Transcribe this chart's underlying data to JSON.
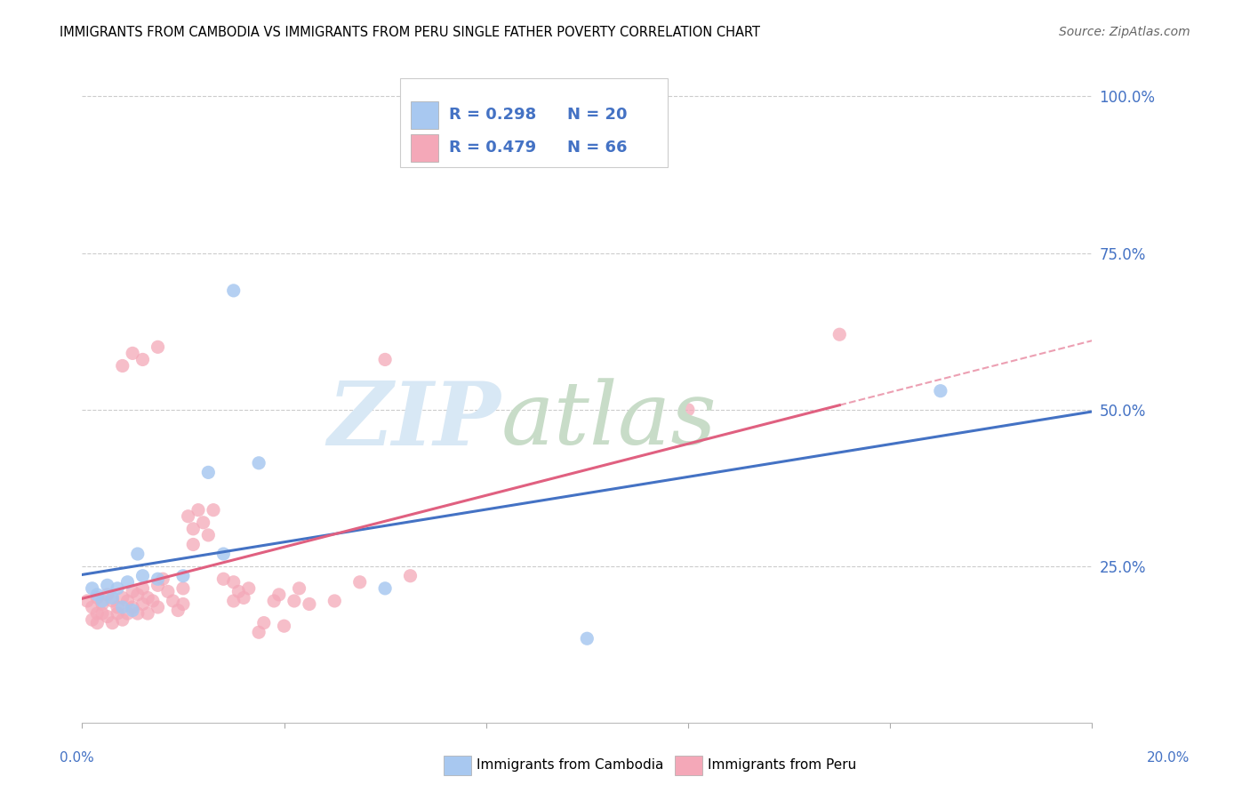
{
  "title": "IMMIGRANTS FROM CAMBODIA VS IMMIGRANTS FROM PERU SINGLE FATHER POVERTY CORRELATION CHART",
  "source": "Source: ZipAtlas.com",
  "ylabel": "Single Father Poverty",
  "xlim": [
    0.0,
    0.2
  ],
  "ylim": [
    0.0,
    1.05
  ],
  "legend_R1": "R = 0.298",
  "legend_N1": "N = 20",
  "legend_R2": "R = 0.479",
  "legend_N2": "N = 66",
  "color_R": "#4472c4",
  "color_N": "#ed7d31",
  "color_cambodia": "#a8c8f0",
  "color_peru": "#f4a8b8",
  "line_color_cambodia": "#4472c4",
  "line_color_peru": "#e06080",
  "background_color": "#ffffff",
  "grid_color": "#cccccc",
  "axis_color": "#4472c4",
  "watermark_zip_color": "#d8e8f5",
  "watermark_atlas_color": "#c8dcc8",
  "cam_x": [
    0.002,
    0.003,
    0.004,
    0.005,
    0.006,
    0.007,
    0.008,
    0.009,
    0.01,
    0.011,
    0.012,
    0.015,
    0.02,
    0.025,
    0.03,
    0.028,
    0.035,
    0.06,
    0.1,
    0.17
  ],
  "cam_y": [
    0.215,
    0.205,
    0.195,
    0.22,
    0.2,
    0.215,
    0.185,
    0.225,
    0.18,
    0.27,
    0.235,
    0.23,
    0.235,
    0.4,
    0.69,
    0.27,
    0.415,
    0.215,
    0.135,
    0.53
  ],
  "peru_x": [
    0.001,
    0.002,
    0.002,
    0.003,
    0.003,
    0.003,
    0.004,
    0.004,
    0.005,
    0.005,
    0.006,
    0.006,
    0.007,
    0.007,
    0.008,
    0.008,
    0.009,
    0.009,
    0.01,
    0.01,
    0.011,
    0.011,
    0.012,
    0.012,
    0.013,
    0.013,
    0.014,
    0.015,
    0.015,
    0.016,
    0.017,
    0.018,
    0.019,
    0.02,
    0.02,
    0.021,
    0.022,
    0.022,
    0.023,
    0.024,
    0.025,
    0.026,
    0.028,
    0.03,
    0.03,
    0.031,
    0.032,
    0.033,
    0.035,
    0.036,
    0.038,
    0.039,
    0.04,
    0.042,
    0.043,
    0.045,
    0.05,
    0.055,
    0.06,
    0.065,
    0.008,
    0.01,
    0.012,
    0.015,
    0.12,
    0.15
  ],
  "peru_y": [
    0.195,
    0.185,
    0.165,
    0.175,
    0.2,
    0.16,
    0.19,
    0.175,
    0.205,
    0.17,
    0.195,
    0.16,
    0.185,
    0.175,
    0.2,
    0.165,
    0.195,
    0.175,
    0.21,
    0.185,
    0.205,
    0.175,
    0.215,
    0.19,
    0.2,
    0.175,
    0.195,
    0.22,
    0.185,
    0.23,
    0.21,
    0.195,
    0.18,
    0.215,
    0.19,
    0.33,
    0.31,
    0.285,
    0.34,
    0.32,
    0.3,
    0.34,
    0.23,
    0.225,
    0.195,
    0.21,
    0.2,
    0.215,
    0.145,
    0.16,
    0.195,
    0.205,
    0.155,
    0.195,
    0.215,
    0.19,
    0.195,
    0.225,
    0.58,
    0.235,
    0.57,
    0.59,
    0.58,
    0.6,
    0.5,
    0.62
  ],
  "yticks": [
    0.0,
    0.25,
    0.5,
    0.75,
    1.0
  ],
  "ytick_labels": [
    "",
    "25.0%",
    "50.0%",
    "75.0%",
    "100.0%"
  ]
}
